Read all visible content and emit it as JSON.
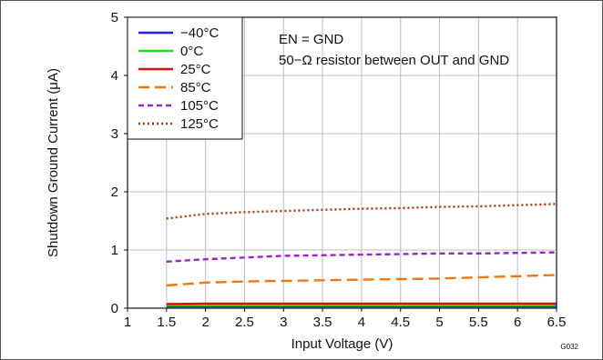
{
  "chart_data": {
    "type": "line",
    "title": "",
    "xlabel": "Input Voltage (V)",
    "ylabel": "Shutdown Ground Current (μA)",
    "xlim": [
      1,
      6.5
    ],
    "ylim": [
      0,
      5
    ],
    "xticks": [
      "1",
      "1.5",
      "2",
      "2.5",
      "3",
      "3.5",
      "4",
      "4.5",
      "5",
      "5.5",
      "6",
      "6.5"
    ],
    "yticks": [
      "0",
      "1",
      "2",
      "3",
      "4",
      "5"
    ],
    "grid": true,
    "legend_position": "top-left",
    "annotations": [
      "EN = GND",
      "50−Ω resistor between OUT and GND"
    ],
    "figure_id": "G032",
    "series": [
      {
        "name": "−40°C",
        "color": "#1f1fff",
        "dash": "solid",
        "x": [
          1.5,
          2,
          2.5,
          3,
          3.5,
          4,
          4.5,
          5,
          5.5,
          6,
          6.5
        ],
        "y": [
          0.03,
          0.03,
          0.03,
          0.03,
          0.03,
          0.03,
          0.03,
          0.03,
          0.03,
          0.03,
          0.03
        ]
      },
      {
        "name": "0°C",
        "color": "#22dd22",
        "dash": "solid",
        "x": [
          1.5,
          2,
          2.5,
          3,
          3.5,
          4,
          4.5,
          5,
          5.5,
          6,
          6.5
        ],
        "y": [
          0.05,
          0.05,
          0.05,
          0.05,
          0.05,
          0.05,
          0.05,
          0.05,
          0.05,
          0.05,
          0.05
        ]
      },
      {
        "name": "25°C",
        "color": "#dd1111",
        "dash": "solid",
        "x": [
          1.5,
          2,
          2.5,
          3,
          3.5,
          4,
          4.5,
          5,
          5.5,
          6,
          6.5
        ],
        "y": [
          0.07,
          0.08,
          0.08,
          0.08,
          0.08,
          0.08,
          0.08,
          0.08,
          0.08,
          0.08,
          0.08
        ]
      },
      {
        "name": "85°C",
        "color": "#ee7711",
        "dash": "longdash",
        "x": [
          1.5,
          2,
          2.5,
          3,
          3.5,
          4,
          4.5,
          5,
          5.5,
          6,
          6.5
        ],
        "y": [
          0.39,
          0.44,
          0.46,
          0.47,
          0.48,
          0.49,
          0.5,
          0.51,
          0.53,
          0.55,
          0.57
        ]
      },
      {
        "name": "105°C",
        "color": "#9922cc",
        "dash": "dash",
        "x": [
          1.5,
          2,
          2.5,
          3,
          3.5,
          4,
          4.5,
          5,
          5.5,
          6,
          6.5
        ],
        "y": [
          0.8,
          0.84,
          0.87,
          0.9,
          0.91,
          0.92,
          0.93,
          0.94,
          0.94,
          0.95,
          0.96
        ]
      },
      {
        "name": "125°C",
        "color": "#aa3311",
        "dash": "dot",
        "x": [
          1.5,
          2,
          2.5,
          3,
          3.5,
          4,
          4.5,
          5,
          5.5,
          6,
          6.5
        ],
        "y": [
          1.54,
          1.62,
          1.65,
          1.67,
          1.69,
          1.71,
          1.72,
          1.74,
          1.75,
          1.77,
          1.79
        ]
      }
    ]
  }
}
